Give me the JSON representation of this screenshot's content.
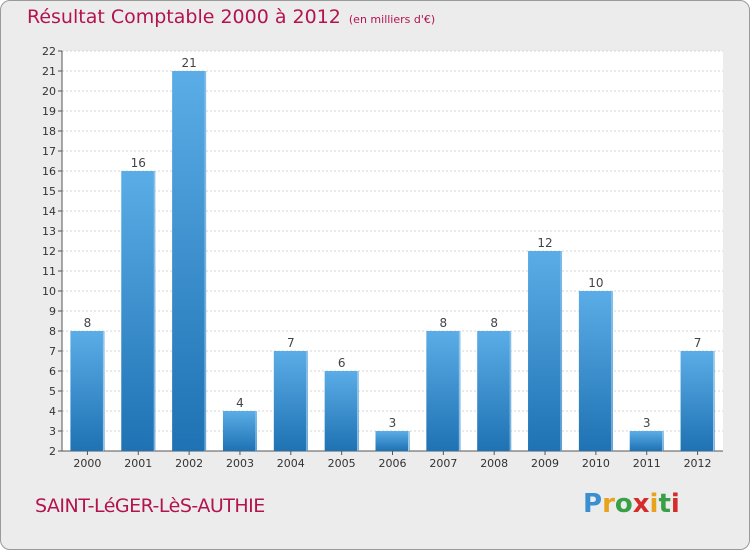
{
  "title": "Résultat Comptable 2000 à 2012",
  "unit_label": "(en milliers d'€)",
  "commune": "SAINT-LéGER-LèS-AUTHIE",
  "logo": {
    "text": "Proxiti",
    "letters": [
      "P",
      "r",
      "o",
      "x",
      "i",
      "t",
      "i"
    ],
    "colors": [
      "#3a8fd1",
      "#e8a21e",
      "#3aa047",
      "#d62b2b",
      "#e8a21e",
      "#3aa047",
      "#d62b2b"
    ]
  },
  "colors": {
    "title": "#b3134f",
    "bar_top": "#5aade6",
    "bar_bottom": "#1f72b3",
    "frame_bg": "#ececec",
    "plot_bg": "#ffffff"
  },
  "chart_data": {
    "type": "bar",
    "title": "Résultat Comptable 2000 à 2012",
    "xlabel": "",
    "ylabel": "",
    "categories": [
      "2000",
      "2001",
      "2002",
      "2003",
      "2004",
      "2005",
      "2006",
      "2007",
      "2008",
      "2009",
      "2010",
      "2011",
      "2012"
    ],
    "values": [
      8,
      16,
      21,
      4,
      7,
      6,
      3,
      8,
      8,
      12,
      10,
      3,
      7
    ],
    "ylim": [
      2,
      22
    ],
    "yticks": [
      2,
      3,
      4,
      5,
      6,
      7,
      8,
      9,
      10,
      11,
      12,
      13,
      14,
      15,
      16,
      17,
      18,
      19,
      20,
      21,
      22
    ],
    "grid": true,
    "legend": "none"
  }
}
